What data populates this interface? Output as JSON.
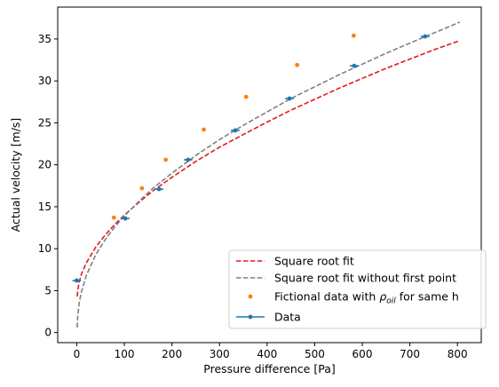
{
  "chart_data": {
    "type": "scatter",
    "xlabel": "Pressure difference [Pa]",
    "ylabel": "Actual velocity [m/s]",
    "xlim": [
      -40,
      850
    ],
    "ylim": [
      -1.2,
      38.8
    ],
    "xticks": [
      0,
      100,
      200,
      300,
      400,
      500,
      600,
      700,
      800
    ],
    "yticks": [
      0,
      5,
      10,
      15,
      20,
      25,
      30,
      35
    ],
    "grid": false,
    "legend_position": "lower-right",
    "series": [
      {
        "name": "Square root fit",
        "kind": "dashed-line",
        "color": "#e41a1c",
        "x": [
          1,
          2,
          5,
          10,
          20,
          40,
          60,
          80,
          100,
          130,
          160,
          200,
          250,
          300,
          350,
          400,
          450,
          500,
          550,
          600,
          650,
          700,
          750,
          805
        ],
        "y": [
          4.3,
          4.95,
          6.0,
          7.0,
          8.3,
          10.2,
          11.65,
          12.9,
          14.0,
          15.5,
          16.9,
          18.5,
          20.4,
          22.1,
          23.6,
          25.1,
          26.5,
          27.8,
          29.1,
          30.3,
          31.5,
          32.6,
          33.7,
          34.8
        ]
      },
      {
        "name": "Square root fit without first point",
        "kind": "dashed-line",
        "color": "#808080",
        "x": [
          1,
          2,
          5,
          10,
          20,
          40,
          60,
          80,
          100,
          130,
          160,
          200,
          250,
          300,
          350,
          400,
          450,
          500,
          550,
          600,
          650,
          700,
          750,
          805
        ],
        "y": [
          0.6,
          1.9,
          3.5,
          4.9,
          6.8,
          9.3,
          11.1,
          12.6,
          13.9,
          15.6,
          17.2,
          19.0,
          21.1,
          23.0,
          24.7,
          26.3,
          27.9,
          29.3,
          30.7,
          32.0,
          33.3,
          34.5,
          35.7,
          37.0
        ]
      },
      {
        "name": "Fictional data with ρ_oil for same h",
        "kind": "points",
        "color": "#ff7f0e",
        "x": [
          78,
          137,
          187,
          267,
          356,
          463,
          582
        ],
        "y": [
          13.7,
          17.2,
          20.6,
          24.2,
          28.1,
          31.9,
          35.4
        ]
      },
      {
        "name": "Data",
        "kind": "errorbar-points",
        "color": "#1f77b4",
        "x": [
          0,
          102,
          173,
          234,
          333,
          447,
          583,
          732
        ],
        "y": [
          6.2,
          13.6,
          17.1,
          20.6,
          24.1,
          27.9,
          31.8,
          35.3
        ],
        "xerr": 9
      }
    ]
  },
  "legend": {
    "items": [
      {
        "label": "Square root fit",
        "color": "#e41a1c",
        "kind": "dashed-line"
      },
      {
        "label": "Square root fit without first point",
        "color": "#808080",
        "kind": "dashed-line"
      },
      {
        "label_main": "Fictional data with ",
        "label_rho": "ρ",
        "label_sub": "oil",
        "label_tail": " for same h",
        "color": "#ff7f0e",
        "kind": "point"
      },
      {
        "label": "Data",
        "color": "#1f77b4",
        "kind": "errorbar-point"
      }
    ]
  }
}
